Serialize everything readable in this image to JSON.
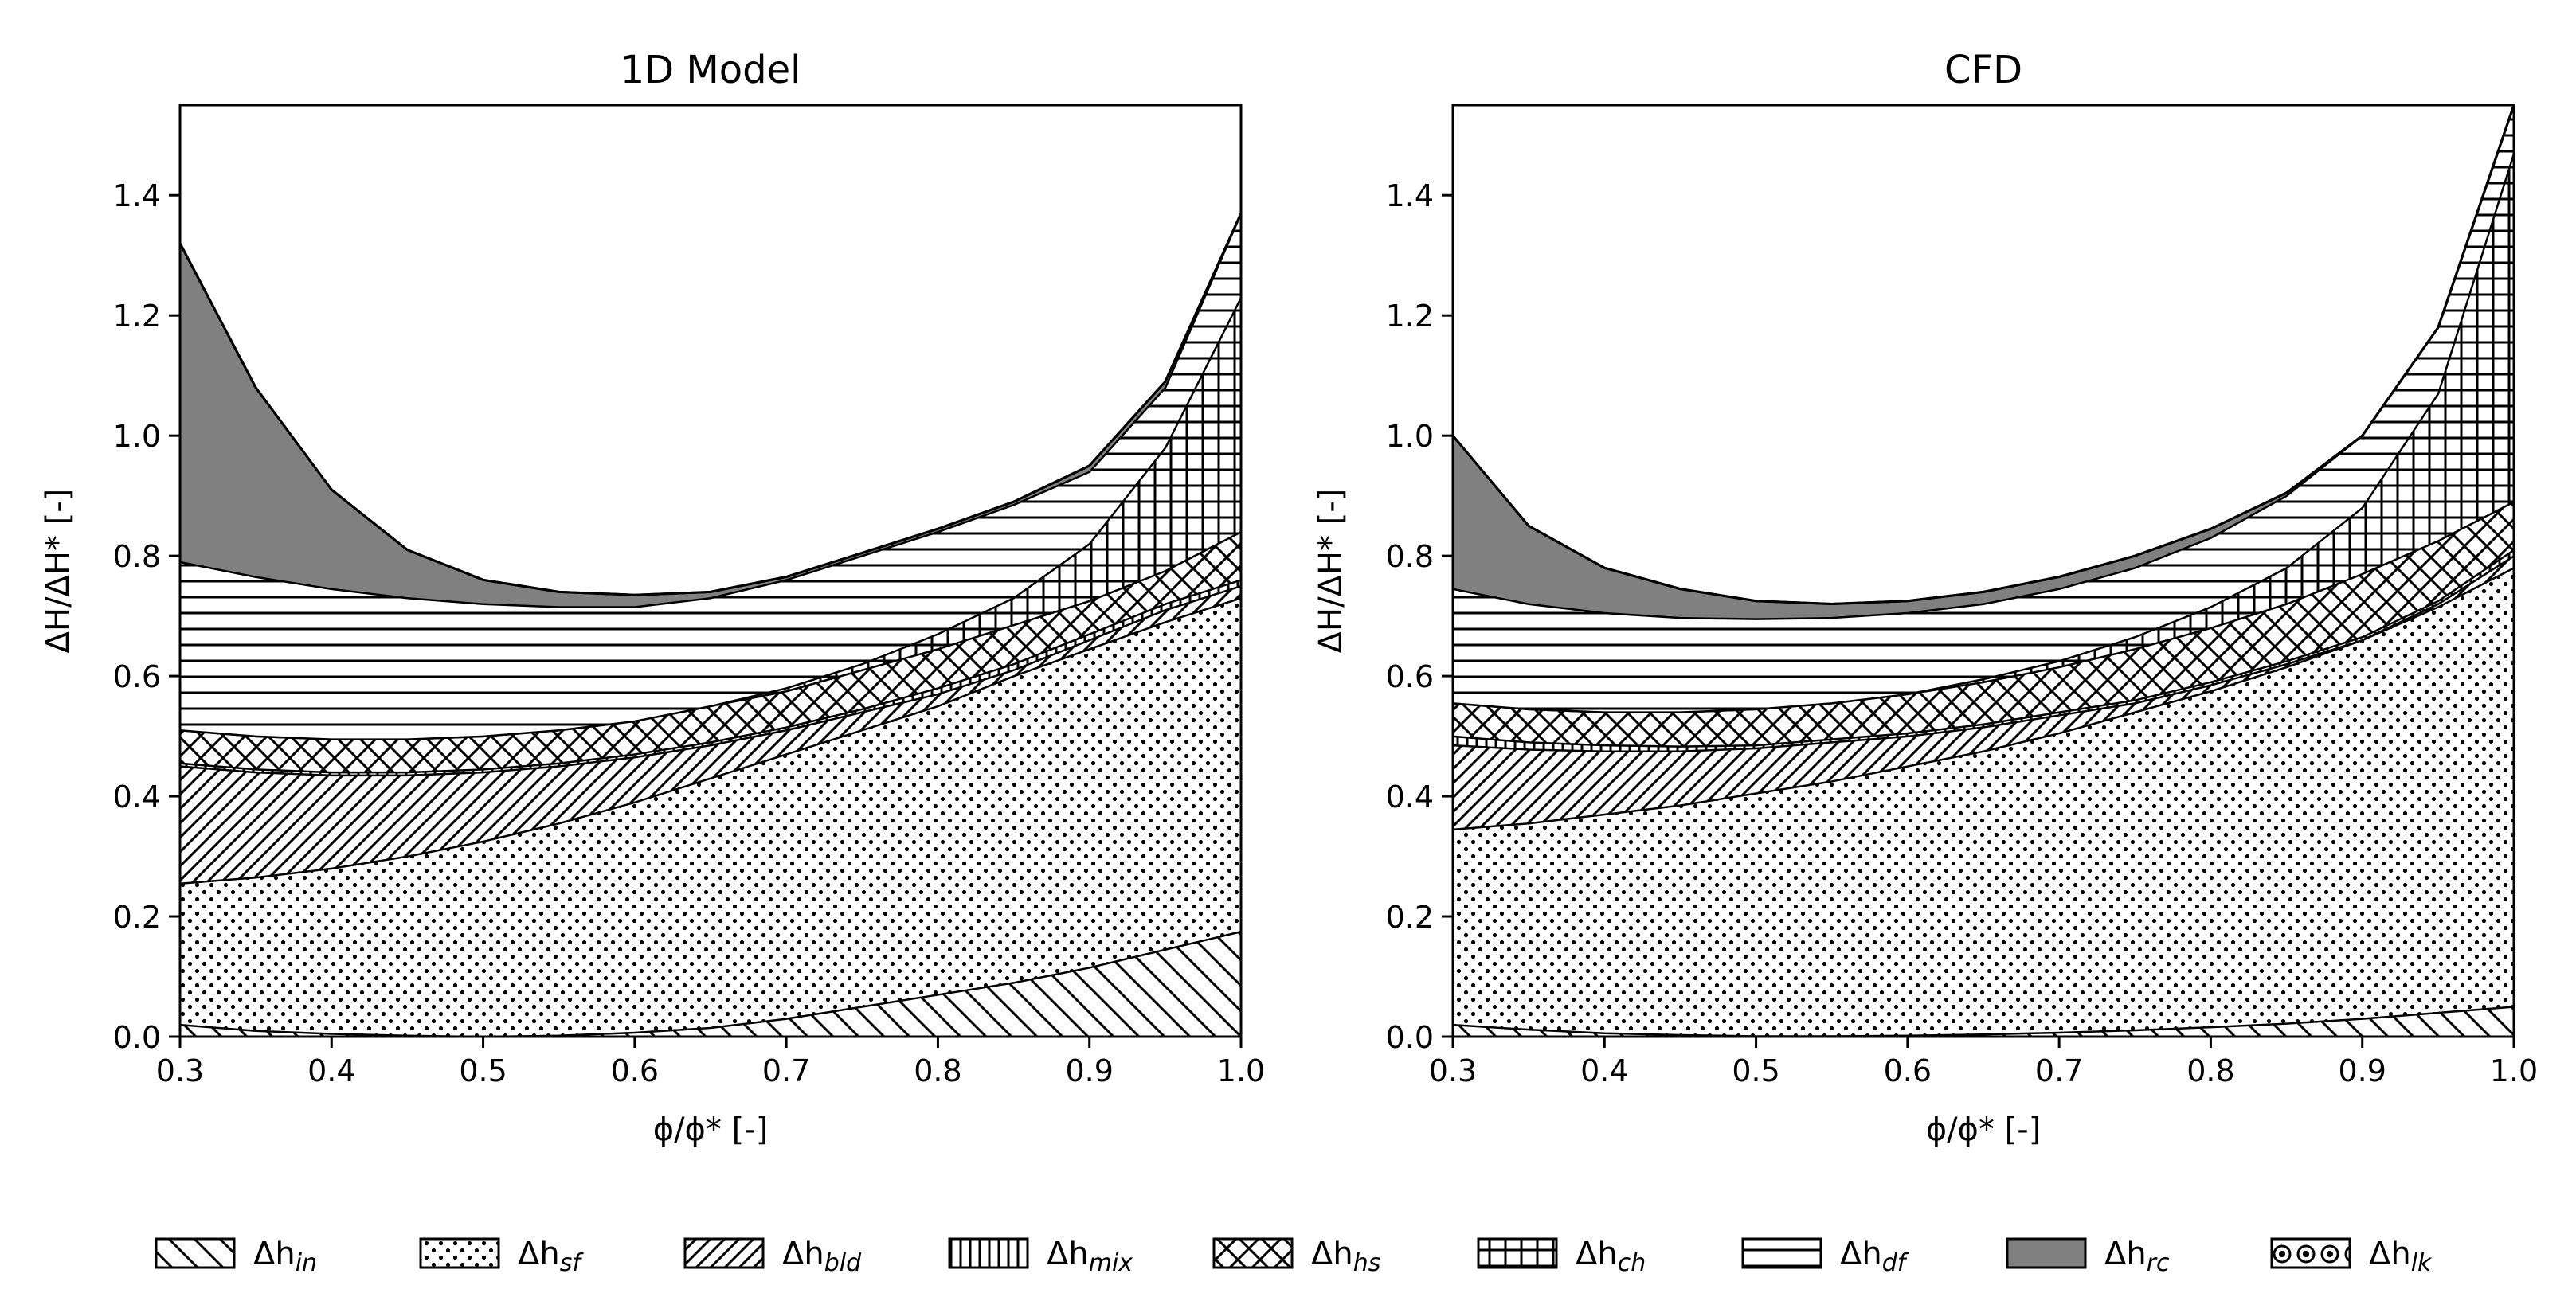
{
  "chart_data": [
    {
      "type": "area",
      "title": "1D Model",
      "xlabel": "ϕ/ϕ* [-]",
      "ylabel": "ΔH/ΔH* [-]",
      "xlim": [
        0.3,
        1.0
      ],
      "ylim": [
        0.0,
        1.55
      ],
      "x_ticks": [
        "0.3",
        "0.4",
        "0.5",
        "0.6",
        "0.7",
        "0.8",
        "0.9",
        "1.0"
      ],
      "y_ticks": [
        "0.0",
        "0.2",
        "0.4",
        "0.6",
        "0.8",
        "1.0",
        "1.2",
        "1.4"
      ],
      "grid": false,
      "stacked": true,
      "x": [
        0.3,
        0.35,
        0.4,
        0.45,
        0.5,
        0.55,
        0.6,
        0.65,
        0.7,
        0.75,
        0.8,
        0.85,
        0.9,
        0.95,
        1.0
      ],
      "series": [
        {
          "key": "in",
          "cumulative": [
            0.02,
            0.01,
            0.005,
            0.002,
            0.0,
            0.002,
            0.007,
            0.015,
            0.03,
            0.05,
            0.07,
            0.09,
            0.115,
            0.145,
            0.175
          ]
        },
        {
          "key": "sf",
          "cumulative": [
            0.255,
            0.265,
            0.28,
            0.3,
            0.325,
            0.355,
            0.39,
            0.43,
            0.47,
            0.51,
            0.55,
            0.6,
            0.645,
            0.69,
            0.73
          ]
        },
        {
          "key": "bld",
          "cumulative": [
            0.45,
            0.44,
            0.435,
            0.435,
            0.44,
            0.45,
            0.465,
            0.485,
            0.51,
            0.54,
            0.57,
            0.61,
            0.66,
            0.71,
            0.75
          ]
        },
        {
          "key": "mix",
          "cumulative": [
            0.455,
            0.445,
            0.44,
            0.44,
            0.445,
            0.455,
            0.47,
            0.49,
            0.515,
            0.545,
            0.58,
            0.62,
            0.67,
            0.72,
            0.76
          ]
        },
        {
          "key": "hs",
          "cumulative": [
            0.51,
            0.5,
            0.495,
            0.495,
            0.5,
            0.51,
            0.525,
            0.55,
            0.575,
            0.61,
            0.645,
            0.685,
            0.725,
            0.775,
            0.84
          ]
        },
        {
          "key": "ch",
          "cumulative": [
            0.51,
            0.5,
            0.495,
            0.495,
            0.5,
            0.51,
            0.525,
            0.55,
            0.58,
            0.62,
            0.67,
            0.73,
            0.82,
            0.98,
            1.23
          ]
        },
        {
          "key": "df",
          "cumulative": [
            0.79,
            0.765,
            0.745,
            0.73,
            0.72,
            0.715,
            0.715,
            0.73,
            0.76,
            0.8,
            0.84,
            0.885,
            0.94,
            1.08,
            1.37
          ]
        },
        {
          "key": "rc",
          "cumulative": [
            1.32,
            1.08,
            0.91,
            0.81,
            0.76,
            0.74,
            0.735,
            0.74,
            0.765,
            0.805,
            0.845,
            0.89,
            0.95,
            1.09,
            1.37
          ]
        },
        {
          "key": "lk",
          "cumulative": [
            1.32,
            1.08,
            0.91,
            0.81,
            0.76,
            0.74,
            0.735,
            0.74,
            0.765,
            0.805,
            0.845,
            0.89,
            0.95,
            1.09,
            1.37
          ]
        }
      ]
    },
    {
      "type": "area",
      "title": "CFD",
      "xlabel": "ϕ/ϕ* [-]",
      "ylabel": "ΔH/ΔH* [-]",
      "xlim": [
        0.3,
        1.0
      ],
      "ylim": [
        0.0,
        1.55
      ],
      "x_ticks": [
        "0.3",
        "0.4",
        "0.5",
        "0.6",
        "0.7",
        "0.8",
        "0.9",
        "1.0"
      ],
      "y_ticks": [
        "0.0",
        "0.2",
        "0.4",
        "0.6",
        "0.8",
        "1.0",
        "1.2",
        "1.4"
      ],
      "grid": false,
      "stacked": true,
      "x": [
        0.3,
        0.35,
        0.4,
        0.45,
        0.5,
        0.55,
        0.6,
        0.65,
        0.7,
        0.75,
        0.8,
        0.85,
        0.9,
        0.95,
        1.0
      ],
      "series": [
        {
          "key": "in",
          "cumulative": [
            0.02,
            0.012,
            0.006,
            0.003,
            0.001,
            0.001,
            0.002,
            0.004,
            0.007,
            0.011,
            0.016,
            0.022,
            0.03,
            0.04,
            0.05
          ]
        },
        {
          "key": "sf",
          "cumulative": [
            0.345,
            0.355,
            0.37,
            0.385,
            0.405,
            0.425,
            0.45,
            0.475,
            0.505,
            0.54,
            0.575,
            0.615,
            0.66,
            0.715,
            0.78
          ]
        },
        {
          "key": "bld",
          "cumulative": [
            0.485,
            0.478,
            0.475,
            0.475,
            0.48,
            0.49,
            0.5,
            0.515,
            0.535,
            0.555,
            0.585,
            0.62,
            0.66,
            0.72,
            0.8
          ]
        },
        {
          "key": "mix",
          "cumulative": [
            0.5,
            0.49,
            0.485,
            0.483,
            0.485,
            0.495,
            0.505,
            0.52,
            0.54,
            0.56,
            0.59,
            0.625,
            0.665,
            0.725,
            0.81
          ]
        },
        {
          "key": "hs",
          "cumulative": [
            0.555,
            0.545,
            0.54,
            0.54,
            0.545,
            0.555,
            0.57,
            0.59,
            0.615,
            0.645,
            0.68,
            0.72,
            0.77,
            0.825,
            0.89
          ]
        },
        {
          "key": "ch",
          "cumulative": [
            0.555,
            0.545,
            0.54,
            0.54,
            0.545,
            0.555,
            0.57,
            0.595,
            0.625,
            0.665,
            0.715,
            0.78,
            0.88,
            1.07,
            1.47
          ]
        },
        {
          "key": "df",
          "cumulative": [
            0.745,
            0.72,
            0.705,
            0.697,
            0.695,
            0.697,
            0.705,
            0.72,
            0.745,
            0.78,
            0.83,
            0.9,
            1.0,
            1.18,
            1.55
          ]
        },
        {
          "key": "rc",
          "cumulative": [
            1.0,
            0.85,
            0.78,
            0.745,
            0.725,
            0.72,
            0.725,
            0.74,
            0.765,
            0.8,
            0.845,
            0.905,
            1.0,
            1.18,
            1.55
          ]
        },
        {
          "key": "lk",
          "cumulative": [
            1.0,
            0.85,
            0.78,
            0.745,
            0.725,
            0.72,
            0.725,
            0.74,
            0.765,
            0.8,
            0.845,
            0.905,
            1.0,
            1.18,
            1.55
          ]
        }
      ]
    }
  ],
  "legend": {
    "placement": "bottom",
    "entries": [
      {
        "key": "in",
        "label": "Δh",
        "sub": "in",
        "pattern": "back-diagonal"
      },
      {
        "key": "sf",
        "label": "Δh",
        "sub": "sf",
        "pattern": "dots"
      },
      {
        "key": "bld",
        "label": "Δh",
        "sub": "bld",
        "pattern": "forward-diagonal"
      },
      {
        "key": "mix",
        "label": "Δh",
        "sub": "mix",
        "pattern": "vertical-lines"
      },
      {
        "key": "hs",
        "label": "Δh",
        "sub": "hs",
        "pattern": "crosshatch-diagonal"
      },
      {
        "key": "ch",
        "label": "Δh",
        "sub": "ch",
        "pattern": "grid"
      },
      {
        "key": "df",
        "label": "Δh",
        "sub": "df",
        "pattern": "horizontal-lines"
      },
      {
        "key": "rc",
        "label": "Δh",
        "sub": "rc",
        "pattern": "solid-gray",
        "color": "#808080"
      },
      {
        "key": "lk",
        "label": "Δh",
        "sub": "lk",
        "pattern": "circles"
      }
    ]
  }
}
